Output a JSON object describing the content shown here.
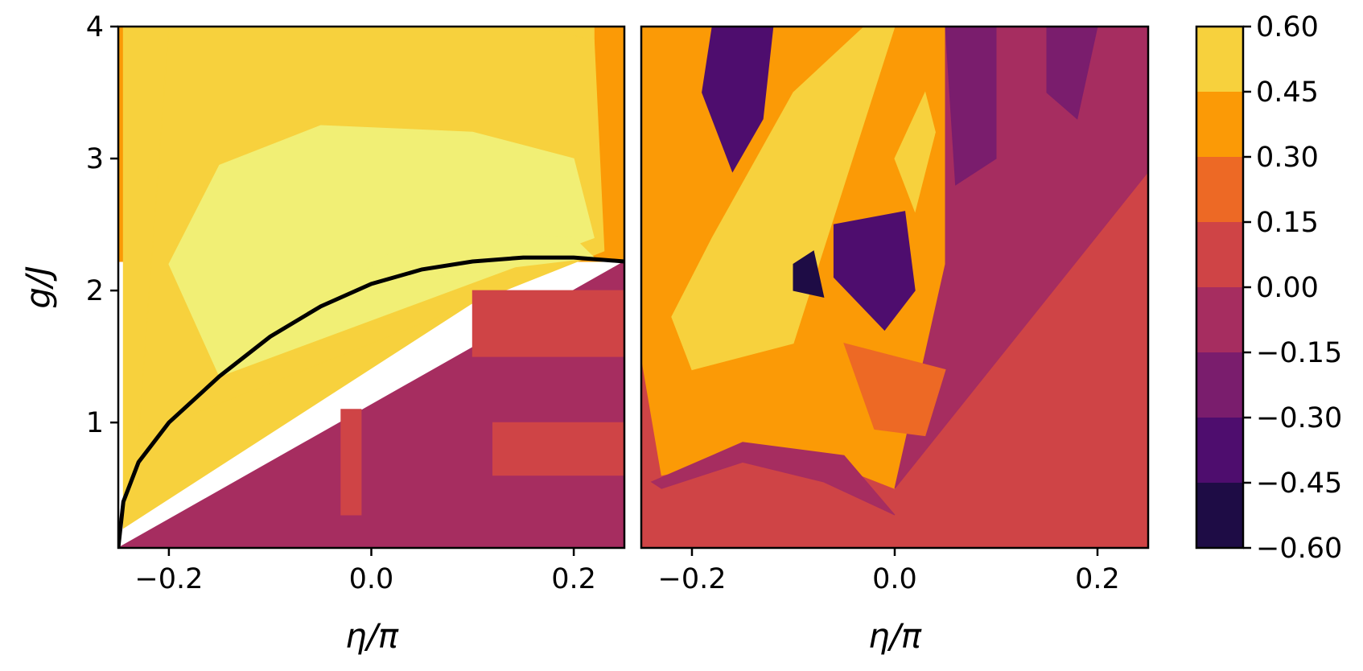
{
  "chart_data": [
    {
      "type": "heatmap",
      "panel": "left",
      "xlabel": "η/π",
      "ylabel": "g/J",
      "xlim": [
        -0.25,
        0.25
      ],
      "ylim": [
        0.05,
        4.0
      ],
      "xticks": [
        -0.2,
        0.0,
        0.2
      ],
      "xtick_labels": [
        "−0.2",
        "0.0",
        "0.2"
      ],
      "yticks": [
        1,
        2,
        3,
        4
      ],
      "ytick_labels": [
        "1",
        "2",
        "3",
        "4"
      ],
      "boundary_curve": {
        "x": [
          -0.25,
          -0.245,
          -0.23,
          -0.2,
          -0.15,
          -0.1,
          -0.05,
          0.0,
          0.05,
          0.1,
          0.15,
          0.2,
          0.25
        ],
        "y": [
          0.05,
          0.4,
          0.7,
          1.0,
          1.35,
          1.65,
          1.88,
          2.05,
          2.16,
          2.22,
          2.25,
          2.25,
          2.22
        ]
      },
      "regions": [
        {
          "level": 0.3,
          "polygon": [
            [
              -0.25,
              4.0
            ],
            [
              0.25,
              4.0
            ],
            [
              0.25,
              2.22
            ],
            [
              -0.25,
              2.22
            ]
          ]
        },
        {
          "level": 0.45,
          "polygon": [
            [
              -0.245,
              4.0
            ],
            [
              0.22,
              4.0
            ],
            [
              0.22,
              2.5
            ],
            [
              -0.245,
              0.2
            ]
          ]
        },
        {
          "level": 0.52,
          "polygon": [
            [
              -0.2,
              4.0
            ],
            [
              0.16,
              4.0
            ],
            [
              0.22,
              3.9
            ],
            [
              0.23,
              2.3
            ],
            [
              -0.23,
              0.9
            ]
          ]
        },
        {
          "level": 0.6,
          "polygon": [
            [
              -0.2,
              2.2
            ],
            [
              -0.15,
              2.95
            ],
            [
              -0.05,
              3.25
            ],
            [
              0.1,
              3.2
            ],
            [
              0.2,
              3.0
            ],
            [
              0.22,
              2.4
            ],
            [
              -0.15,
              1.35
            ]
          ]
        },
        {
          "level": 0.7,
          "polygon": [
            [
              -0.05,
              1.9
            ],
            [
              0.02,
              2.3
            ],
            [
              0.1,
              2.45
            ],
            [
              0.2,
              2.4
            ],
            [
              0.22,
              2.25
            ],
            [
              0.0,
              2.05
            ]
          ]
        },
        {
          "level": -0.05,
          "polygon": [
            [
              -0.25,
              0.05
            ],
            [
              0.25,
              0.05
            ],
            [
              0.25,
              2.22
            ],
            [
              -0.25,
              0.05
            ]
          ]
        },
        {
          "level": 0.05,
          "polygon": [
            [
              0.1,
              2.0
            ],
            [
              0.25,
              2.0
            ],
            [
              0.25,
              1.5
            ],
            [
              0.1,
              1.5
            ]
          ]
        },
        {
          "level": 0.05,
          "polygon": [
            [
              0.12,
              1.0
            ],
            [
              0.25,
              1.0
            ],
            [
              0.25,
              0.6
            ],
            [
              0.12,
              0.6
            ]
          ]
        },
        {
          "level": 0.05,
          "polygon": [
            [
              -0.03,
              1.1
            ],
            [
              -0.01,
              1.1
            ],
            [
              -0.01,
              0.3
            ],
            [
              -0.03,
              0.3
            ]
          ]
        }
      ]
    },
    {
      "type": "heatmap",
      "panel": "right",
      "xlabel": "η/π",
      "ylabel": "",
      "xlim": [
        -0.25,
        0.25
      ],
      "ylim": [
        0.05,
        4.0
      ],
      "xticks": [
        -0.2,
        0.0,
        0.2
      ],
      "xtick_labels": [
        "−0.2",
        "0.0",
        "0.2"
      ],
      "regions": [
        {
          "level": 0.05,
          "polygon": [
            [
              -0.25,
              0.05
            ],
            [
              0.25,
              0.05
            ],
            [
              0.25,
              4.0
            ],
            [
              -0.25,
              4.0
            ]
          ]
        },
        {
          "level": 0.35,
          "polygon": [
            [
              -0.25,
              4.0
            ],
            [
              0.15,
              4.0
            ],
            [
              0.2,
              3.0
            ],
            [
              0.0,
              0.5
            ],
            [
              -0.1,
              0.8
            ],
            [
              -0.23,
              0.6
            ],
            [
              -0.25,
              1.5
            ]
          ]
        },
        {
          "level": -0.08,
          "polygon": [
            [
              0.05,
              4.0
            ],
            [
              0.25,
              4.0
            ],
            [
              0.25,
              2.9
            ],
            [
              0.0,
              0.5
            ],
            [
              0.05,
              2.2
            ]
          ]
        },
        {
          "level": -0.08,
          "polygon": [
            [
              -0.24,
              0.55
            ],
            [
              -0.15,
              0.85
            ],
            [
              -0.05,
              0.75
            ],
            [
              0.0,
              0.3
            ],
            [
              -0.07,
              0.55
            ],
            [
              -0.15,
              0.7
            ],
            [
              -0.23,
              0.5
            ]
          ]
        },
        {
          "level": 0.55,
          "polygon": [
            [
              -0.22,
              1.8
            ],
            [
              -0.18,
              2.4
            ],
            [
              -0.1,
              3.5
            ],
            [
              -0.03,
              4.0
            ],
            [
              0.0,
              4.0
            ],
            [
              -0.05,
              2.8
            ],
            [
              -0.1,
              1.6
            ],
            [
              -0.2,
              1.4
            ]
          ]
        },
        {
          "level": 0.55,
          "polygon": [
            [
              0.0,
              3.0
            ],
            [
              0.03,
              3.5
            ],
            [
              0.04,
              3.2
            ],
            [
              0.02,
              2.6
            ]
          ]
        },
        {
          "level": -0.35,
          "polygon": [
            [
              -0.18,
              4.0
            ],
            [
              -0.12,
              4.0
            ],
            [
              -0.13,
              3.3
            ],
            [
              -0.16,
              2.9
            ],
            [
              -0.19,
              3.5
            ]
          ]
        },
        {
          "level": -0.4,
          "polygon": [
            [
              -0.06,
              2.5
            ],
            [
              0.01,
              2.6
            ],
            [
              0.02,
              2.0
            ],
            [
              -0.01,
              1.7
            ],
            [
              -0.06,
              2.1
            ]
          ]
        },
        {
          "level": -0.25,
          "polygon": [
            [
              0.05,
              4.0
            ],
            [
              0.1,
              4.0
            ],
            [
              0.1,
              3.0
            ],
            [
              0.06,
              2.8
            ]
          ]
        },
        {
          "level": -0.2,
          "polygon": [
            [
              0.15,
              4.0
            ],
            [
              0.2,
              4.0
            ],
            [
              0.18,
              3.3
            ],
            [
              0.15,
              3.5
            ]
          ]
        },
        {
          "level": -0.5,
          "polygon": [
            [
              -0.1,
              2.2
            ],
            [
              -0.08,
              2.3
            ],
            [
              -0.07,
              1.95
            ],
            [
              -0.1,
              2.0
            ]
          ]
        },
        {
          "level": 0.2,
          "polygon": [
            [
              -0.05,
              1.6
            ],
            [
              0.05,
              1.4
            ],
            [
              0.03,
              0.9
            ],
            [
              -0.02,
              0.95
            ]
          ]
        }
      ]
    }
  ],
  "colorbar": {
    "levels": [
      -0.6,
      -0.45,
      -0.3,
      -0.15,
      0.0,
      0.15,
      0.3,
      0.45,
      0.6
    ],
    "tick_labels": [
      "−0.60",
      "−0.45",
      "−0.30",
      "−0.15",
      "0.00",
      "0.15",
      "0.30",
      "0.45",
      "0.60"
    ],
    "band_colors": [
      "#1e0c45",
      "#4e0d6e",
      "#7a1d6d",
      "#a62d60",
      "#cf4446",
      "#ed6925",
      "#fb9a06",
      "#f7d13d"
    ],
    "top_color": "#f1ef75"
  }
}
